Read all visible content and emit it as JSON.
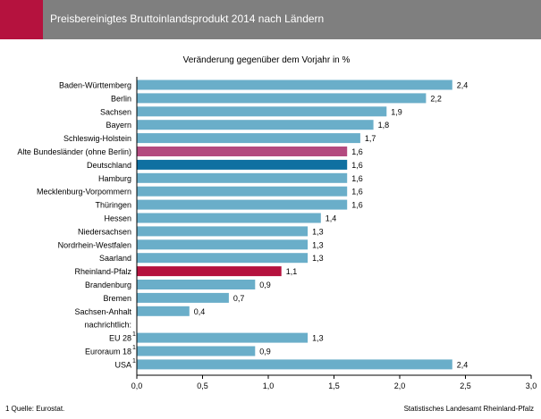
{
  "header": {
    "title": "Preisbereinigtes Bruttoinlandsprodukt 2014 nach Ländern"
  },
  "colors": {
    "header_bg": "#7f7f7f",
    "accent": "#b5123e",
    "default_bar": "#6aaec9",
    "highlight_bar": "#0f70a1",
    "alte_bundeslaender_bar": "#b34a7f",
    "rheinland_pfalz_bar": "#b5123e"
  },
  "footer": {
    "source": "1 Quelle: Eurostat.",
    "publisher": "Statistisches Landesamt Rheinland-Pfalz"
  },
  "chart_data": {
    "type": "bar",
    "orientation": "horizontal",
    "title": "Veränderung gegenüber dem Vorjahr in %",
    "xlim": [
      0,
      3
    ],
    "xticks": [
      "0,0",
      "0,5",
      "1,0",
      "1,5",
      "2,0",
      "2,5",
      "3,0"
    ],
    "categories": [
      "Baden-Württemberg",
      "Berlin",
      "Sachsen",
      "Bayern",
      "Schleswig-Holstein",
      "Alte Bundesländer (ohne Berlin)",
      "Deutschland",
      "Hamburg",
      "Mecklenburg-Vorpommern",
      "Thüringen",
      "Hessen",
      "Niedersachsen",
      "Nordrhein-Westfalen",
      "Saarland",
      "Rheinland-Pfalz",
      "Brandenburg",
      "Bremen",
      "Sachsen-Anhalt",
      "nachrichtlich:",
      "EU 28",
      "Euroraum 18",
      "USA"
    ],
    "footnote_marks": [
      "",
      "",
      "",
      "",
      "",
      "",
      "",
      "",
      "",
      "",
      "",
      "",
      "",
      "",
      "",
      "",
      "",
      "",
      "",
      "1",
      "1",
      "1"
    ],
    "values": [
      2.4,
      2.2,
      1.9,
      1.8,
      1.7,
      1.6,
      1.6,
      1.6,
      1.6,
      1.6,
      1.4,
      1.3,
      1.3,
      1.3,
      1.1,
      0.9,
      0.7,
      0.4,
      null,
      1.3,
      0.9,
      2.4
    ],
    "value_labels": [
      "2,4",
      "2,2",
      "1,9",
      "1,8",
      "1,7",
      "1,6",
      "1,6",
      "1,6",
      "1,6",
      "1,6",
      "1,4",
      "1,3",
      "1,3",
      "1,3",
      "1,1",
      "0,9",
      "0,7",
      "0,4",
      "",
      "1,3",
      "0,9",
      "2,4"
    ],
    "bar_colors": [
      "#6aaec9",
      "#6aaec9",
      "#6aaec9",
      "#6aaec9",
      "#6aaec9",
      "#b34a7f",
      "#0f70a1",
      "#6aaec9",
      "#6aaec9",
      "#6aaec9",
      "#6aaec9",
      "#6aaec9",
      "#6aaec9",
      "#6aaec9",
      "#b5123e",
      "#6aaec9",
      "#6aaec9",
      "#6aaec9",
      "#6aaec9",
      "#6aaec9",
      "#6aaec9",
      "#6aaec9"
    ],
    "grid": false,
    "legend": "none"
  }
}
